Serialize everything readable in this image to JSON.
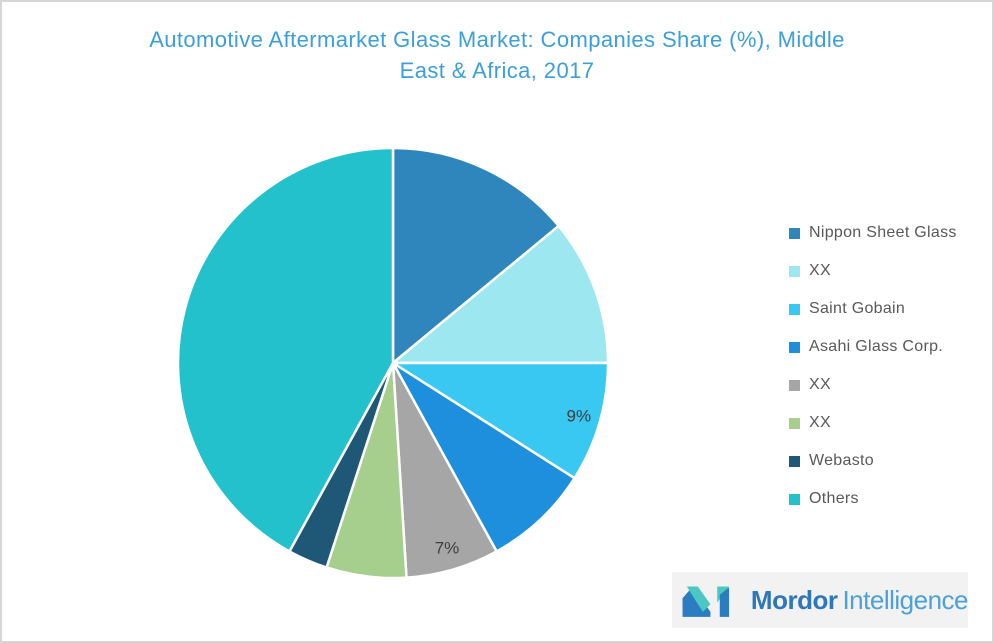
{
  "title": {
    "line1": "Automotive Aftermarket Glass Market: Companies Share (%), Middle",
    "line2": "East & Africa, 2017"
  },
  "chart_data": {
    "type": "pie",
    "title": "Automotive Aftermarket Glass Market: Companies Share (%), Middle East & Africa, 2017",
    "unit": "%",
    "legend_position": "right",
    "start_angle_deg": 0,
    "direction": "clockwise",
    "slices": [
      {
        "name": "Nippon Sheet Glass",
        "value": 14,
        "color": "#2E86BD",
        "label": ""
      },
      {
        "name": "XX",
        "value": 11,
        "color": "#9CE7F0",
        "label": ""
      },
      {
        "name": "Saint Gobain",
        "value": 9,
        "color": "#38C8F2",
        "label": "9%"
      },
      {
        "name": "Asahi Glass Corp.",
        "value": 8,
        "color": "#1E8FDC",
        "label": ""
      },
      {
        "name": "XX",
        "value": 7,
        "color": "#A6A6A6",
        "label": "7%"
      },
      {
        "name": "XX",
        "value": 6,
        "color": "#A6CE8D",
        "label": ""
      },
      {
        "name": "Webasto",
        "value": 3,
        "color": "#1F5876",
        "label": ""
      },
      {
        "name": "Others",
        "value": 42,
        "color": "#22C1CC",
        "label": ""
      }
    ]
  },
  "logo": {
    "bold_text": "Mordor",
    "light_text": "Intelligence"
  },
  "colors": {
    "title_color": "#3C9FD8",
    "legend_text_color": "#595959",
    "slice_label_color": "#3F3F3F",
    "logo_bold_color": "#2E77B8",
    "logo_light_color": "#4BA1D9",
    "logo_mark_blue": "#2B7CC0",
    "logo_mark_teal": "#4BC8C4",
    "logo_bg": "#F2F2F2",
    "page_border": "#D6D6D6"
  }
}
